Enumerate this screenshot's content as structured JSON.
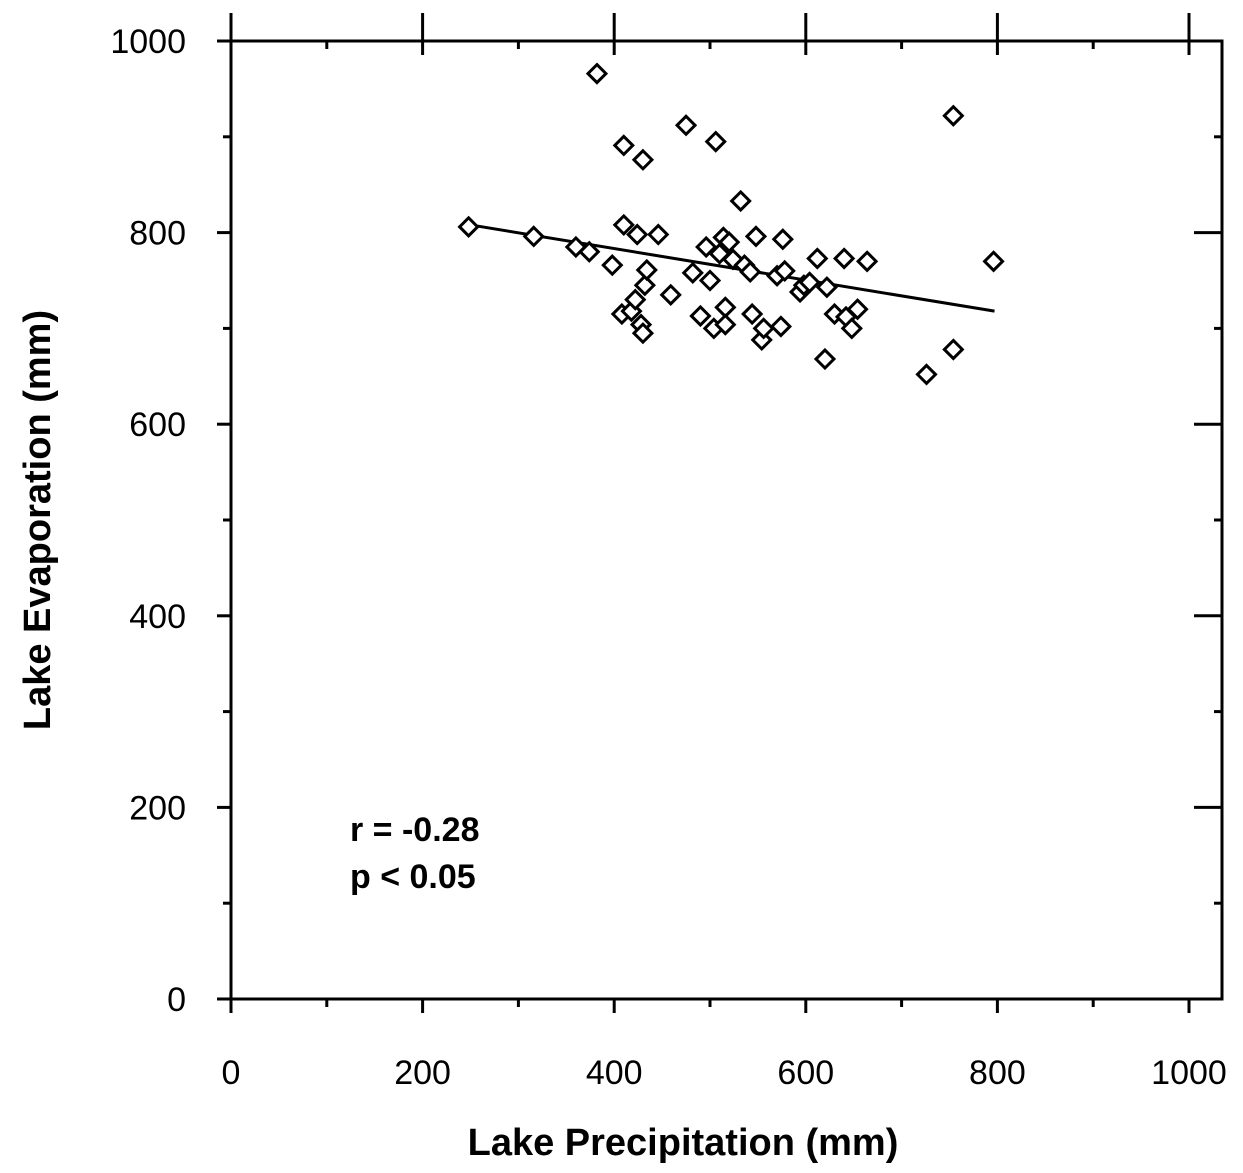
{
  "chart_data": {
    "type": "scatter",
    "xlabel": "Lake Precipitation (mm)",
    "ylabel": "Lake Evaporation (mm)",
    "xlim": [
      0,
      1000
    ],
    "ylim": [
      0,
      1000
    ],
    "x_ticks": [
      "0",
      "200",
      "400",
      "600",
      "800",
      "1000"
    ],
    "y_ticks": [
      "0",
      "200",
      "400",
      "600",
      "800",
      "1000"
    ],
    "grid": false,
    "annotations": [
      "r = -0.28",
      "p < 0.05"
    ],
    "marker": "diamond",
    "points": [
      {
        "x": 248,
        "y": 806
      },
      {
        "x": 316,
        "y": 796
      },
      {
        "x": 360,
        "y": 785
      },
      {
        "x": 374,
        "y": 780
      },
      {
        "x": 382,
        "y": 966
      },
      {
        "x": 398,
        "y": 766
      },
      {
        "x": 410,
        "y": 891
      },
      {
        "x": 410,
        "y": 808
      },
      {
        "x": 408,
        "y": 715
      },
      {
        "x": 418,
        "y": 718
      },
      {
        "x": 422,
        "y": 730
      },
      {
        "x": 424,
        "y": 798
      },
      {
        "x": 428,
        "y": 704
      },
      {
        "x": 430,
        "y": 876
      },
      {
        "x": 430,
        "y": 695
      },
      {
        "x": 432,
        "y": 745
      },
      {
        "x": 434,
        "y": 761
      },
      {
        "x": 446,
        "y": 798
      },
      {
        "x": 459,
        "y": 735
      },
      {
        "x": 475,
        "y": 912
      },
      {
        "x": 482,
        "y": 758
      },
      {
        "x": 490,
        "y": 713
      },
      {
        "x": 496,
        "y": 785
      },
      {
        "x": 500,
        "y": 750
      },
      {
        "x": 504,
        "y": 700
      },
      {
        "x": 506,
        "y": 895
      },
      {
        "x": 510,
        "y": 778
      },
      {
        "x": 514,
        "y": 795
      },
      {
        "x": 516,
        "y": 722
      },
      {
        "x": 516,
        "y": 704
      },
      {
        "x": 520,
        "y": 790
      },
      {
        "x": 524,
        "y": 772
      },
      {
        "x": 532,
        "y": 833
      },
      {
        "x": 536,
        "y": 766
      },
      {
        "x": 542,
        "y": 759
      },
      {
        "x": 544,
        "y": 715
      },
      {
        "x": 548,
        "y": 796
      },
      {
        "x": 554,
        "y": 688
      },
      {
        "x": 556,
        "y": 700
      },
      {
        "x": 570,
        "y": 755
      },
      {
        "x": 574,
        "y": 702
      },
      {
        "x": 576,
        "y": 793
      },
      {
        "x": 578,
        "y": 760
      },
      {
        "x": 594,
        "y": 738
      },
      {
        "x": 598,
        "y": 745
      },
      {
        "x": 604,
        "y": 748
      },
      {
        "x": 612,
        "y": 773
      },
      {
        "x": 620,
        "y": 668
      },
      {
        "x": 622,
        "y": 743
      },
      {
        "x": 630,
        "y": 715
      },
      {
        "x": 640,
        "y": 773
      },
      {
        "x": 642,
        "y": 712
      },
      {
        "x": 648,
        "y": 700
      },
      {
        "x": 654,
        "y": 720
      },
      {
        "x": 664,
        "y": 770
      },
      {
        "x": 726,
        "y": 652
      },
      {
        "x": 754,
        "y": 678
      },
      {
        "x": 754,
        "y": 922
      },
      {
        "x": 796,
        "y": 770
      }
    ],
    "fit_line": {
      "x": [
        250,
        797
      ],
      "y": [
        808,
        718
      ]
    }
  }
}
